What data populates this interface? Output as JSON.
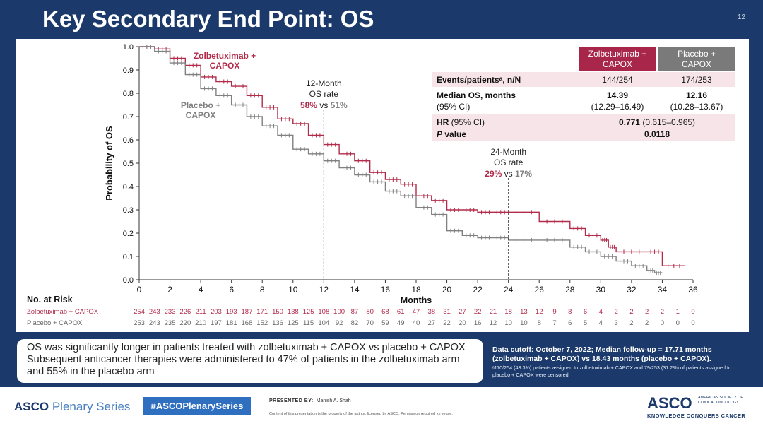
{
  "slide": {
    "title": "Key Secondary End Point: OS",
    "number": "12"
  },
  "chart_data": {
    "type": "line",
    "subtype": "kaplan-meier",
    "xlabel": "Months",
    "ylabel": "Probability of OS",
    "xlim": [
      0,
      36
    ],
    "ylim": [
      0,
      1.0
    ],
    "xticks": [
      "0",
      "2",
      "4",
      "6",
      "8",
      "10",
      "12",
      "14",
      "16",
      "18",
      "20",
      "22",
      "24",
      "26",
      "28",
      "30",
      "32",
      "34",
      "36"
    ],
    "yticks": [
      "0.0",
      "0.1",
      "0.2",
      "0.3",
      "0.4",
      "0.5",
      "0.6",
      "0.7",
      "0.8",
      "0.9",
      "1.0"
    ],
    "series": [
      {
        "name": "Zolbetuximab + CAPOX",
        "color": "#b22b4a",
        "x": [
          0,
          1,
          2,
          3,
          4,
          5,
          6,
          7,
          8,
          9,
          10,
          11,
          12,
          13,
          14,
          15,
          16,
          17,
          18,
          19,
          20,
          21,
          22,
          23,
          24,
          26,
          28,
          29,
          30,
          30.5,
          31,
          33,
          34,
          35.5
        ],
        "y": [
          1.0,
          0.99,
          0.95,
          0.92,
          0.87,
          0.85,
          0.83,
          0.79,
          0.74,
          0.69,
          0.67,
          0.62,
          0.58,
          0.54,
          0.51,
          0.46,
          0.43,
          0.41,
          0.36,
          0.34,
          0.3,
          0.3,
          0.29,
          0.29,
          0.29,
          0.25,
          0.22,
          0.19,
          0.17,
          0.14,
          0.12,
          0.12,
          0.06,
          0.06
        ]
      },
      {
        "name": "Placebo + CAPOX",
        "color": "#808080",
        "x": [
          0,
          1,
          2,
          3,
          4,
          5,
          6,
          7,
          8,
          9,
          10,
          11,
          12,
          13,
          14,
          15,
          16,
          17,
          18,
          19,
          20,
          21,
          22,
          23,
          24,
          26,
          28,
          29,
          30,
          31,
          32,
          33,
          33.5,
          34
        ],
        "y": [
          1.0,
          0.98,
          0.93,
          0.88,
          0.82,
          0.79,
          0.75,
          0.7,
          0.66,
          0.62,
          0.56,
          0.54,
          0.51,
          0.48,
          0.45,
          0.42,
          0.38,
          0.36,
          0.31,
          0.28,
          0.21,
          0.19,
          0.18,
          0.18,
          0.17,
          0.17,
          0.14,
          0.12,
          0.1,
          0.08,
          0.06,
          0.04,
          0.03,
          0.03
        ]
      }
    ],
    "curve_labels": {
      "zolbe": [
        "Zolbetuximab +",
        "CAPOX"
      ],
      "placebo": [
        "Placebo +",
        "CAPOX"
      ]
    },
    "landmarks": [
      {
        "month": 12,
        "line1": "12-Month",
        "line2": "OS rate",
        "zolbe_rate": "58%",
        "vs": "vs",
        "placebo_rate": "51%"
      },
      {
        "month": 24,
        "line1": "24-Month",
        "line2": "OS rate",
        "zolbe_rate": "29%",
        "vs": "vs",
        "placebo_rate": "17%"
      }
    ],
    "grid": false
  },
  "risk_table": {
    "title": "No. at Risk",
    "x_label": "Months",
    "rows": [
      {
        "label": "Zolbetuximab + CAPOX",
        "color": "#b22b4a",
        "values": [
          "254",
          "243",
          "233",
          "226",
          "211",
          "203",
          "193",
          "187",
          "171",
          "150",
          "138",
          "125",
          "108",
          "100",
          "87",
          "80",
          "68",
          "61",
          "47",
          "38",
          "31",
          "27",
          "22",
          "21",
          "18",
          "13",
          "12",
          "9",
          "8",
          "6",
          "4",
          "2",
          "2",
          "2",
          "2",
          "1",
          "0"
        ]
      },
      {
        "label": "Placebo + CAPOX",
        "color": "#666666",
        "values": [
          "253",
          "243",
          "235",
          "220",
          "210",
          "197",
          "181",
          "168",
          "152",
          "136",
          "125",
          "115",
          "104",
          "92",
          "82",
          "70",
          "59",
          "49",
          "40",
          "27",
          "22",
          "20",
          "16",
          "12",
          "10",
          "10",
          "8",
          "7",
          "6",
          "5",
          "4",
          "3",
          "2",
          "2",
          "0",
          "0",
          "0"
        ]
      }
    ]
  },
  "stats_table": {
    "header_zolbe": "Zolbetuximab + CAPOX",
    "header_placebo": "Placebo + CAPOX",
    "header_zolbe_color": "#a8264a",
    "header_placebo_color": "#7a7a7a",
    "events_label": "Events/patientsᵃ, n/N",
    "events_zolbe": "144/254",
    "events_placebo": "174/253",
    "median_label": "Median OS, months",
    "ci_label": "(95% CI)",
    "median_zolbe": "14.39",
    "ci_zolbe": "(12.29–16.49)",
    "median_placebo": "12.16",
    "ci_placebo": "(10.28–13.67)",
    "hr_label_bold": "HR",
    "hr_label_rest": " (95% CI)",
    "hr_value_bold": "0.771",
    "hr_value_rest": " (0.615–0.965)",
    "p_label": "P",
    "p_label_rest": " value",
    "p_value": "0.0118"
  },
  "summary": {
    "line1": "OS was significantly longer in patients treated with zolbetuximab + CAPOX vs placebo + CAPOX",
    "line2": "Subsequent anticancer therapies were administered to 47% of patients in the zolbetuximab arm and 55% in the placebo arm"
  },
  "data_cutoff": "Data cutoff: October 7, 2022; Median follow-up = 17.71 months (zolbetuximab + CAPOX) vs 18.43 months (placebo + CAPOX).",
  "footnote": "ᵃ110/254 (43.3%) patients assigned to zolbetuximab + CAPOX and 79/253 (31.2%) of patients assigned to placebo + CAPOX were censored.",
  "footer": {
    "asco_left_bold": "ASCO",
    "asco_left_rest": " Plenary Series",
    "hashtag": "#ASCOPlenarySeries",
    "presented_by_label": "PRESENTED BY:",
    "presenter": "Manish A. Shah",
    "copyright": "Content of this presentation is the property of the author, licensed by ASCO. Permission required for reuse.",
    "asco_right": "ASCO",
    "asco_right_sub": "AMERICAN SOCIETY OF CLINICAL ONCOLOGY",
    "asco_right_tag": "KNOWLEDGE CONQUERS CANCER"
  }
}
